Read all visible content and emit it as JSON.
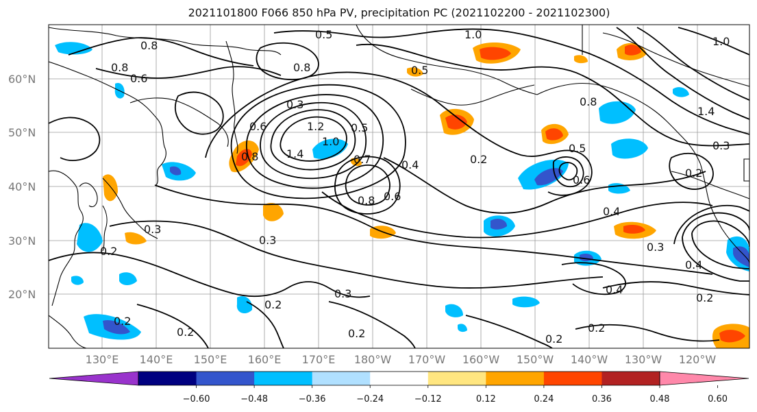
{
  "title": "2021101800 F066 850 hPa PV, precipitation PC (2021102200 - 2021102300)",
  "map": {
    "lat_labels": [
      "60°N",
      "50°N",
      "40°N",
      "30°N",
      "20°N"
    ],
    "lon_labels": [
      "130°E",
      "140°E",
      "150°E",
      "160°E",
      "170°E",
      "180°W",
      "170°W",
      "160°W",
      "150°W",
      "140°W",
      "130°W",
      "120°W"
    ],
    "contour_labels": [
      "0.8",
      "0.6",
      "0.8",
      "0.5",
      "1.0",
      "0.8",
      "0.5",
      "0.3",
      "1.2",
      "1.4",
      "0.6",
      "0.8",
      "1.0",
      "0.5",
      "0.7",
      "0.4",
      "0.2",
      "0.8",
      "0.6",
      "0.5",
      "0.6",
      "0.8",
      "1.0",
      "1.4",
      "0.3",
      "0.2",
      "0.4",
      "0.3",
      "0.3",
      "0.2",
      "0.3",
      "0.2",
      "0.2",
      "0.2",
      "0.2",
      "0.2",
      "0.4",
      "0.2",
      "0.3",
      "0.4",
      "0.2"
    ]
  },
  "colorbar": {
    "ticks": [
      "−0.60",
      "−0.48",
      "−0.36",
      "−0.24",
      "−0.12",
      "0.12",
      "0.24",
      "0.36",
      "0.48",
      "0.60"
    ],
    "colors": [
      "#9933cc",
      "#000080",
      "#3355cc",
      "#00bfff",
      "#b0e0ff",
      "#ffffff",
      "#ffe680",
      "#ffa500",
      "#ff4500",
      "#b22222",
      "#ff88aa"
    ]
  }
}
